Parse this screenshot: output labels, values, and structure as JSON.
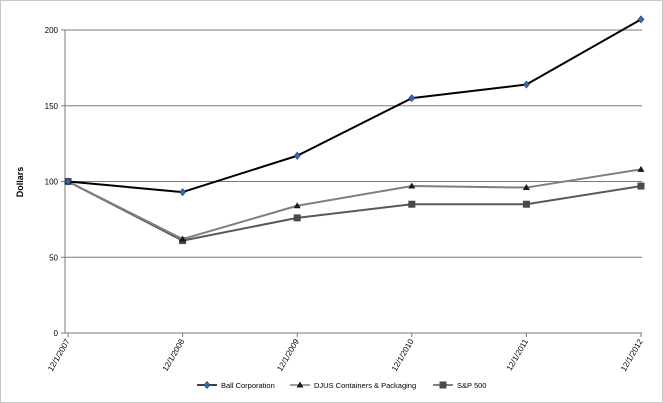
{
  "chart_data": {
    "type": "line",
    "title": "",
    "xlabel": "",
    "ylabel": "Dollars",
    "ylim": [
      0,
      200
    ],
    "yticks": [
      0,
      50,
      100,
      150,
      200
    ],
    "grid": "horizontal",
    "legend_position": "bottom",
    "categories": [
      "12/1/2007",
      "12/1/2008",
      "12/1/2009",
      "12/1/2010",
      "12/1/2011",
      "12/1/2012"
    ],
    "series": [
      {
        "name": "Ball Corporation",
        "values": [
          100,
          93,
          117,
          155,
          164,
          207
        ],
        "color": "#000000",
        "marker_color": "#2e6db4",
        "marker": "diamond"
      },
      {
        "name": "DJUS Containers & Packaging",
        "values": [
          100,
          62,
          84,
          97,
          96,
          108
        ],
        "color": "#7f7f7f",
        "marker_color": "#1a1a1a",
        "marker": "triangle"
      },
      {
        "name": "S&P 500",
        "values": [
          100,
          61,
          76,
          85,
          85,
          97
        ],
        "color": "#595959",
        "marker_color": "#4a4a4a",
        "marker": "square"
      }
    ]
  }
}
